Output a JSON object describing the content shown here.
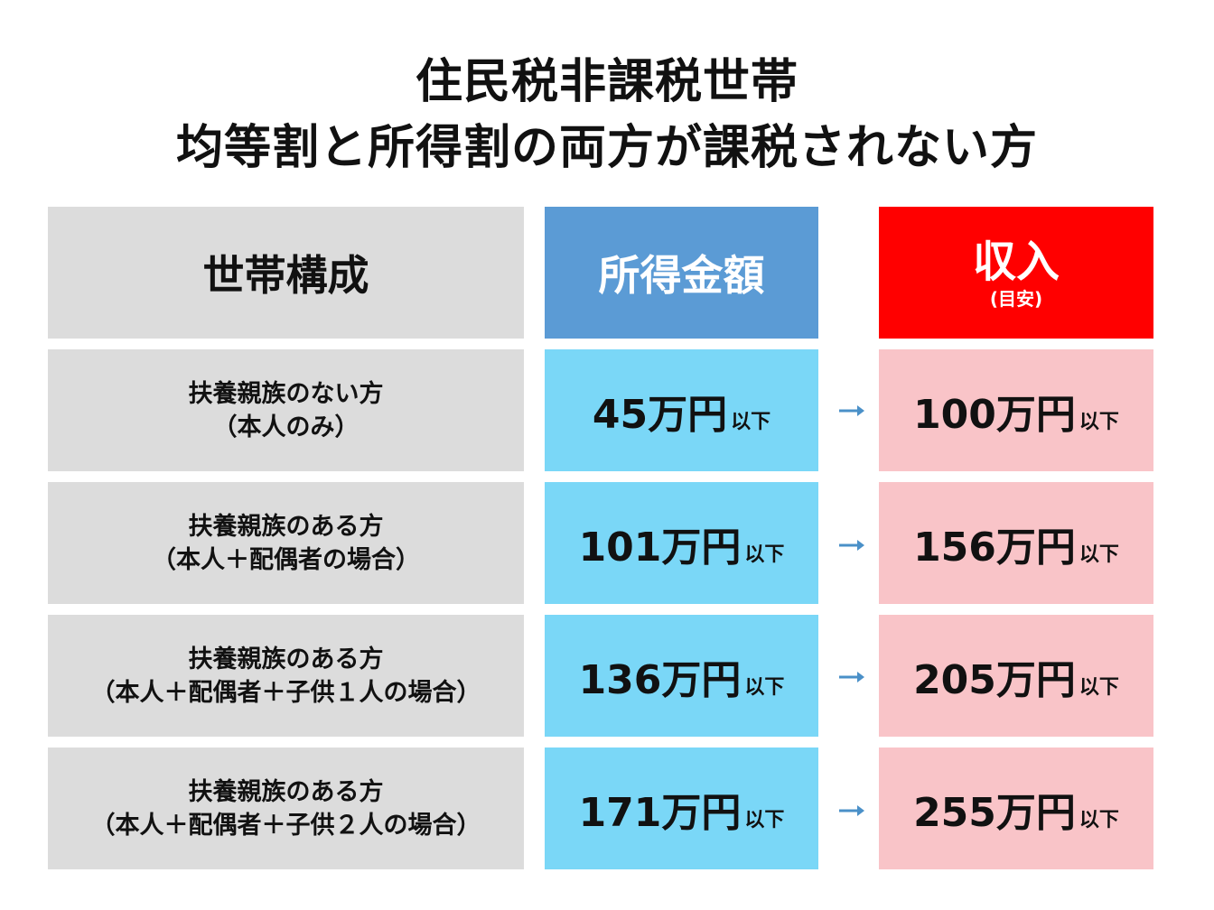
{
  "title": {
    "line1": "住民税非課税世帯",
    "line2": "均等割と所得割の両方が課税されない方"
  },
  "headers": {
    "household": "世帯構成",
    "income": "所得金額",
    "revenue": "収入",
    "revenue_note": "(目安)"
  },
  "colors": {
    "header_gray": "#dcdcdc",
    "header_blue": "#5b9bd5",
    "header_red": "#ff0000",
    "cell_blue": "#7ad7f7",
    "cell_pink": "#f9c4c8",
    "arrow": "#4a90c8"
  },
  "suffix": "以下",
  "rows": [
    {
      "line1": "扶養親族のない方",
      "line2": "（本人のみ）",
      "income": "45万円",
      "revenue": "100万円"
    },
    {
      "line1": "扶養親族のある方",
      "line2": "（本人＋配偶者の場合）",
      "income": "101万円",
      "revenue": "156万円"
    },
    {
      "line1": "扶養親族のある方",
      "line2": "（本人＋配偶者＋子供１人の場合）",
      "income": "136万円",
      "revenue": "205万円"
    },
    {
      "line1": "扶養親族のある方",
      "line2": "（本人＋配偶者＋子供２人の場合）",
      "income": "171万円",
      "revenue": "255万円"
    }
  ]
}
